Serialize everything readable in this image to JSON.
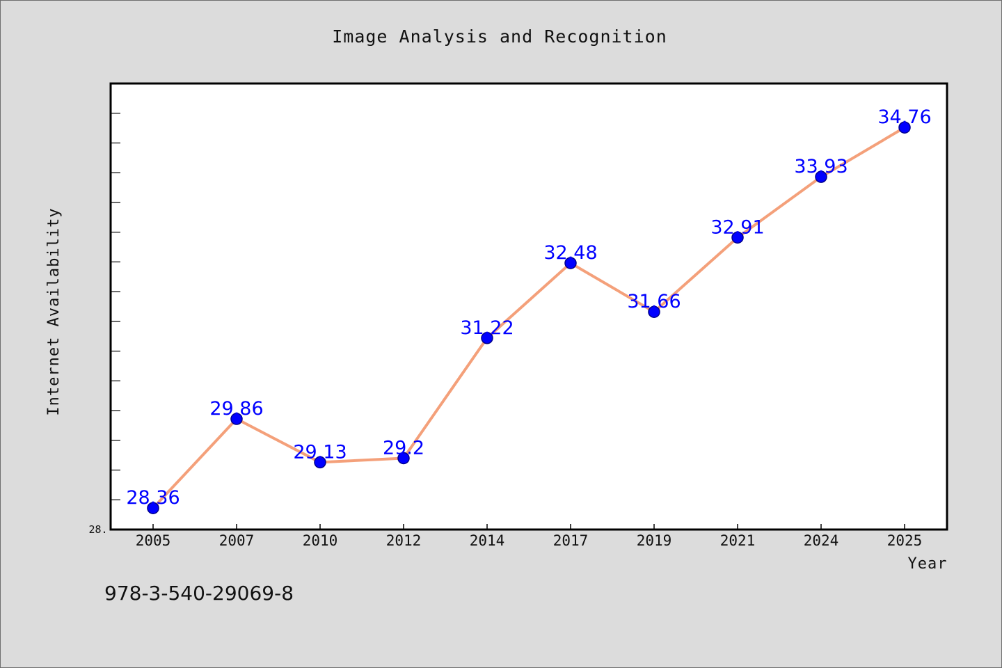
{
  "chart_data": {
    "type": "line",
    "title": "Image Analysis and Recognition",
    "xlabel": "Year",
    "ylabel": "Internet Availability",
    "categories": [
      "2005",
      "2007",
      "2010",
      "2012",
      "2014",
      "2017",
      "2019",
      "2021",
      "2024",
      "2025"
    ],
    "series": [
      {
        "values": [
          28.36,
          29.86,
          29.13,
          29.2,
          31.22,
          32.48,
          31.66,
          32.91,
          33.93,
          34.76
        ],
        "line_color": "#f4a07a",
        "marker_color": "#0000ff",
        "label_color": "#0000ff"
      }
    ],
    "ylim": [
      28.0,
      35.5
    ],
    "yticks_labeled": [
      "28."
    ],
    "grid": false,
    "legend": "none"
  },
  "footer": {
    "isbn": "978-3-540-29069-8"
  },
  "colors": {
    "background": "#dcdcdc",
    "plot_background": "#ffffff"
  }
}
